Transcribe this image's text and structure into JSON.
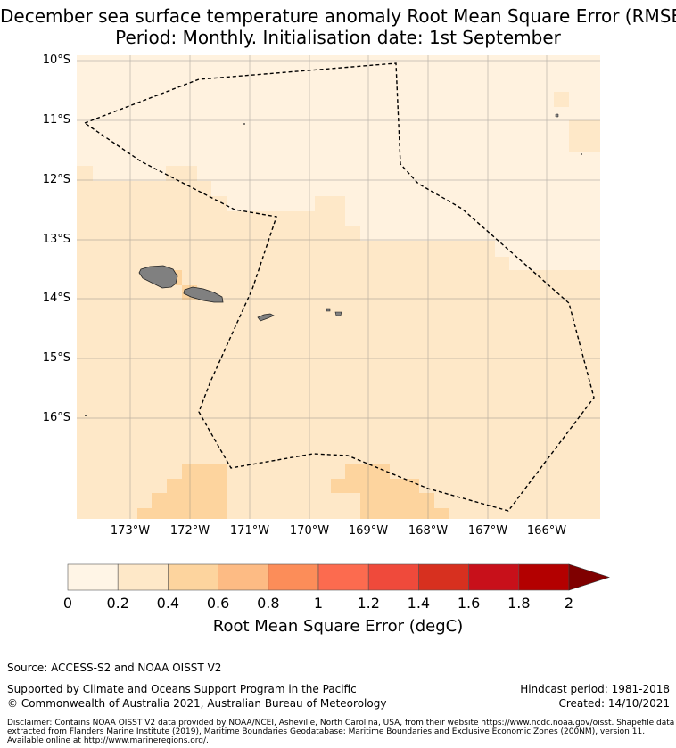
{
  "title": {
    "line1": "December sea surface temperature anomaly Root Mean Square Error (RMSE)",
    "line2": "Period: Monthly. Initialisation date: 1st September"
  },
  "map": {
    "lat_labels": [
      "10°S",
      "11°S",
      "12°S",
      "13°S",
      "14°S",
      "15°S",
      "16°S"
    ],
    "lon_labels": [
      "173°W",
      "172°W",
      "171°W",
      "170°W",
      "169°W",
      "168°W",
      "167°W",
      "166°W"
    ],
    "land_color": "#808080",
    "eez_boundary_style": "dashed"
  },
  "colorbar": {
    "ticks": [
      "0",
      "0.2",
      "0.4",
      "0.6",
      "0.8",
      "1",
      "1.2",
      "1.4",
      "1.6",
      "1.8",
      "2"
    ],
    "colors": [
      "#fff5e6",
      "#fee8c8",
      "#fdd49e",
      "#fdbb84",
      "#fc8d59",
      "#fc6b4f",
      "#ef4a3b",
      "#d7301f",
      "#c8101a",
      "#b30000",
      "#7f0000"
    ],
    "label": "Root Mean Square Error (degC)",
    "extend": "max"
  },
  "footer": {
    "source": "Source: ACCESS-S2 and NOAA OISST V2",
    "supported": "Supported by Climate and Oceans Support Program in the Pacific",
    "copyright": "© Commonwealth of Australia 2021, Australian Bureau of Meteorology",
    "hindcast": "Hindcast period: 1981-2018",
    "created": "Created: 14/10/2021",
    "disclaimer": "Disclaimer: Contains NOAA OISST V2 data provided by NOAA/NCEI, Asheville, North Carolina, USA, from their website https://www.ncdc.noaa.gov/oisst. Shapefile data extracted from Flanders Marine Institute (2019), Maritime Boundaries Geodatabase: Maritime Boundaries and Exclusive Economic Zones (200NM), version 11. Available online at http://www.marineregions.org/."
  }
}
